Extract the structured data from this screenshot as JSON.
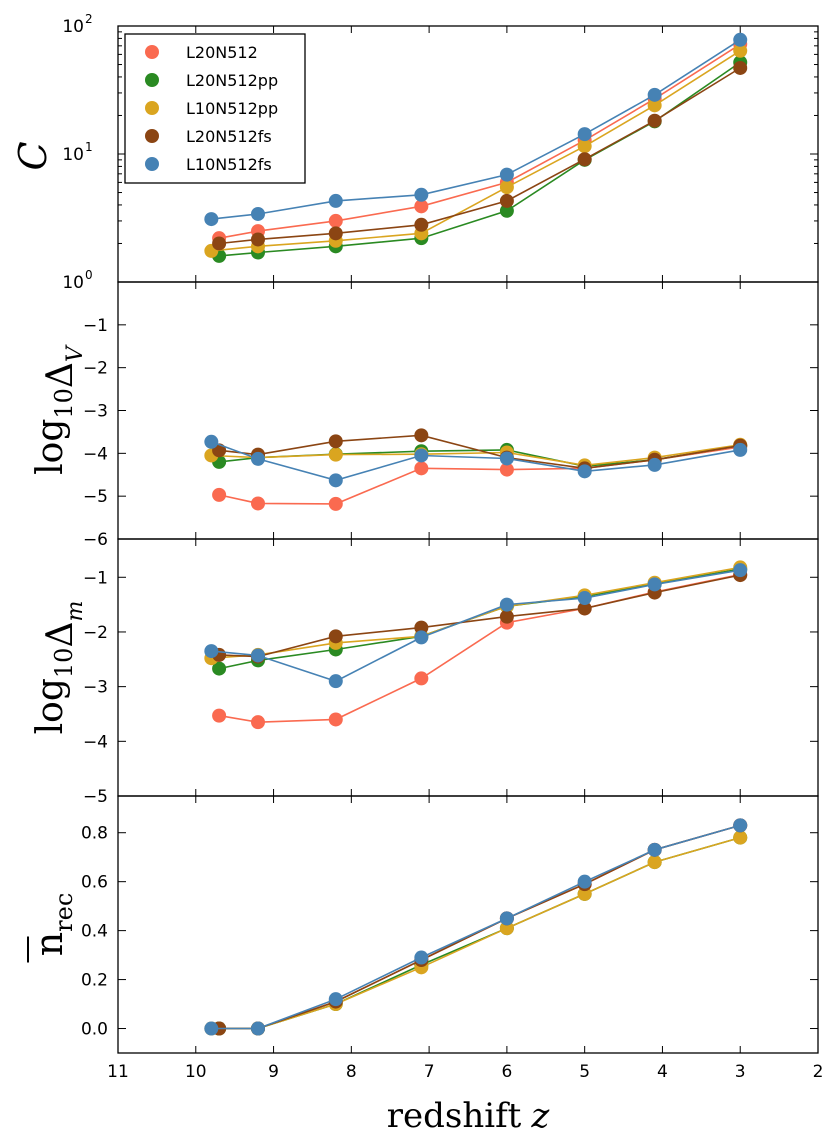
{
  "colors": {
    "L20N512": "#fa6a50",
    "L20N512pp": "#2a8a22",
    "L10N512pp": "#daa520",
    "L20N512fs": "#8b4513",
    "L10N512fs": "#4682b4"
  },
  "chart_data": [
    {
      "id": "C",
      "type": "line",
      "yscale": "log",
      "ylabel": "C",
      "ylim": [
        1,
        100
      ],
      "yticks": [
        1,
        10,
        100
      ],
      "ytick_labels": [
        {
          "base": "10",
          "exp": "0"
        },
        {
          "base": "10",
          "exp": "1"
        },
        {
          "base": "10",
          "exp": "2"
        }
      ],
      "legend": [
        "L20N512",
        "L20N512pp",
        "L10N512pp",
        "L20N512fs",
        "L10N512fs"
      ],
      "legend_loc": "upper-left",
      "series": [
        {
          "name": "L20N512",
          "x": [
            9.7,
            9.2,
            8.2,
            7.1,
            6.0,
            5.0,
            4.1,
            3.0
          ],
          "values": [
            2.2,
            2.5,
            3.0,
            3.9,
            6.0,
            12.8,
            27.0,
            72.0
          ]
        },
        {
          "name": "L20N512pp",
          "x": [
            9.7,
            9.2,
            8.2,
            7.1,
            6.0,
            5.0,
            4.1,
            3.0
          ],
          "values": [
            1.6,
            1.7,
            1.9,
            2.2,
            3.6,
            9.0,
            18.0,
            52.0
          ]
        },
        {
          "name": "L10N512pp",
          "x": [
            9.8,
            9.2,
            8.2,
            7.1,
            6.0,
            5.0,
            4.1,
            3.0
          ],
          "values": [
            1.75,
            1.9,
            2.1,
            2.4,
            5.5,
            11.5,
            24.0,
            64.0
          ]
        },
        {
          "name": "L20N512fs",
          "x": [
            9.7,
            9.2,
            8.2,
            7.1,
            6.0,
            5.0,
            4.1,
            3.0
          ],
          "values": [
            2.0,
            2.15,
            2.4,
            2.8,
            4.3,
            9.1,
            18.2,
            47.0
          ]
        },
        {
          "name": "L10N512fs",
          "x": [
            9.8,
            9.2,
            8.2,
            7.1,
            6.0,
            5.0,
            4.1,
            3.0
          ],
          "values": [
            3.1,
            3.4,
            4.3,
            4.8,
            6.9,
            14.3,
            29.0,
            78.0
          ]
        }
      ]
    },
    {
      "id": "DeltaV",
      "type": "line",
      "yscale": "linear",
      "ylabel_main": "log",
      "ylabel_sub": "10",
      "ylabel_arg": "Δ",
      "ylabel_argsub": "V",
      "ylim": [
        -6,
        0
      ],
      "yticks": [
        -6,
        -5,
        -4,
        -3,
        -2,
        -1
      ],
      "ytick_labels": [
        "−6",
        "−5",
        "−4",
        "−3",
        "−2",
        "−1"
      ],
      "series": [
        {
          "name": "L20N512",
          "x": [
            9.7,
            9.2,
            8.2,
            7.1,
            6.0,
            5.0,
            4.1,
            3.0
          ],
          "values": [
            -4.97,
            -5.17,
            -5.18,
            -4.35,
            -4.38,
            -4.35,
            -4.15,
            -3.85
          ]
        },
        {
          "name": "L20N512pp",
          "x": [
            9.7,
            9.2,
            8.2,
            7.1,
            6.0,
            5.0,
            4.1,
            3.0
          ],
          "values": [
            -4.2,
            -4.1,
            -4.02,
            -3.95,
            -3.92,
            -4.3,
            -4.15,
            -3.82
          ]
        },
        {
          "name": "L10N512pp",
          "x": [
            9.8,
            9.2,
            8.2,
            7.1,
            6.0,
            5.0,
            4.1,
            3.0
          ],
          "values": [
            -4.05,
            -4.1,
            -4.03,
            -4.02,
            -3.98,
            -4.28,
            -4.1,
            -3.8
          ]
        },
        {
          "name": "L20N512fs",
          "x": [
            9.7,
            9.2,
            8.2,
            7.1,
            6.0,
            5.0,
            4.1,
            3.0
          ],
          "values": [
            -3.93,
            -4.03,
            -3.72,
            -3.58,
            -4.1,
            -4.35,
            -4.15,
            -3.82
          ]
        },
        {
          "name": "L10N512fs",
          "x": [
            9.8,
            9.2,
            8.2,
            7.1,
            6.0,
            5.0,
            4.1,
            3.0
          ],
          "values": [
            -3.73,
            -4.13,
            -4.63,
            -4.05,
            -4.12,
            -4.42,
            -4.27,
            -3.92
          ]
        }
      ]
    },
    {
      "id": "DeltaM",
      "type": "line",
      "yscale": "linear",
      "ylabel_main": "log",
      "ylabel_sub": "10",
      "ylabel_arg": "Δ",
      "ylabel_argsub": "m",
      "ylim": [
        -5,
        -0.3
      ],
      "yticks": [
        -5,
        -4,
        -3,
        -2,
        -1
      ],
      "ytick_labels": [
        "−5",
        "−4",
        "−3",
        "−2",
        "−1"
      ],
      "series": [
        {
          "name": "L20N512",
          "x": [
            9.7,
            9.2,
            8.2,
            7.1,
            6.0,
            5.0,
            4.1,
            3.0
          ],
          "values": [
            -3.53,
            -3.65,
            -3.6,
            -2.85,
            -1.83,
            -1.57,
            -1.27,
            -0.95
          ]
        },
        {
          "name": "L20N512pp",
          "x": [
            9.7,
            9.2,
            8.2,
            7.1,
            6.0,
            5.0,
            4.1,
            3.0
          ],
          "values": [
            -2.67,
            -2.52,
            -2.32,
            -2.08,
            -1.53,
            -1.35,
            -1.12,
            -0.85
          ]
        },
        {
          "name": "L10N512pp",
          "x": [
            9.8,
            9.2,
            8.2,
            7.1,
            6.0,
            5.0,
            4.1,
            3.0
          ],
          "values": [
            -2.48,
            -2.42,
            -2.2,
            -2.08,
            -1.53,
            -1.33,
            -1.1,
            -0.82
          ]
        },
        {
          "name": "L20N512fs",
          "x": [
            9.7,
            9.2,
            8.2,
            7.1,
            6.0,
            5.0,
            4.1,
            3.0
          ],
          "values": [
            -2.42,
            -2.45,
            -2.08,
            -1.92,
            -1.72,
            -1.57,
            -1.28,
            -0.96
          ]
        },
        {
          "name": "L10N512fs",
          "x": [
            9.8,
            9.2,
            8.2,
            7.1,
            6.0,
            5.0,
            4.1,
            3.0
          ],
          "values": [
            -2.35,
            -2.43,
            -2.9,
            -2.1,
            -1.5,
            -1.38,
            -1.13,
            -0.87
          ]
        }
      ]
    },
    {
      "id": "nrec",
      "type": "line",
      "yscale": "linear",
      "ylabel_main": "n",
      "ylabel_sub": "rec",
      "ylim": [
        -0.1,
        0.95
      ],
      "yticks": [
        0.0,
        0.2,
        0.4,
        0.6,
        0.8
      ],
      "ytick_labels": [
        "0.0",
        "0.2",
        "0.4",
        "0.6",
        "0.8"
      ],
      "xlabel": "redshift",
      "xlabel_var": "z",
      "xlim": [
        11,
        2
      ],
      "xticks": [
        11,
        10,
        9,
        8,
        7,
        6,
        5,
        4,
        3,
        2
      ],
      "xtick_labels": [
        "11",
        "10",
        "9",
        "8",
        "7",
        "6",
        "5",
        "4",
        "3",
        "2"
      ],
      "series": [
        {
          "name": "L20N512",
          "x": [
            9.7,
            9.2,
            8.2,
            7.1,
            6.0,
            5.0,
            4.1,
            3.0
          ],
          "values": [
            0.0,
            0.0,
            0.11,
            0.28,
            0.45,
            0.59,
            0.73,
            0.83
          ]
        },
        {
          "name": "L20N512pp",
          "x": [
            9.7,
            9.2,
            8.2,
            7.1,
            6.0,
            5.0,
            4.1,
            3.0
          ],
          "values": [
            0.0,
            0.0,
            0.1,
            0.26,
            0.41,
            0.55,
            0.68,
            0.78
          ]
        },
        {
          "name": "L10N512pp",
          "x": [
            9.8,
            9.2,
            8.2,
            7.1,
            6.0,
            5.0,
            4.1,
            3.0
          ],
          "values": [
            0.0,
            0.0,
            0.1,
            0.25,
            0.41,
            0.55,
            0.68,
            0.78
          ]
        },
        {
          "name": "L20N512fs",
          "x": [
            9.7,
            9.2,
            8.2,
            7.1,
            6.0,
            5.0,
            4.1,
            3.0
          ],
          "values": [
            0.0,
            0.0,
            0.11,
            0.28,
            0.45,
            0.59,
            0.73,
            0.83
          ]
        },
        {
          "name": "L10N512fs",
          "x": [
            9.8,
            9.2,
            8.2,
            7.1,
            6.0,
            5.0,
            4.1,
            3.0
          ],
          "values": [
            0.0,
            0.0,
            0.12,
            0.29,
            0.45,
            0.6,
            0.73,
            0.83
          ]
        }
      ]
    }
  ]
}
